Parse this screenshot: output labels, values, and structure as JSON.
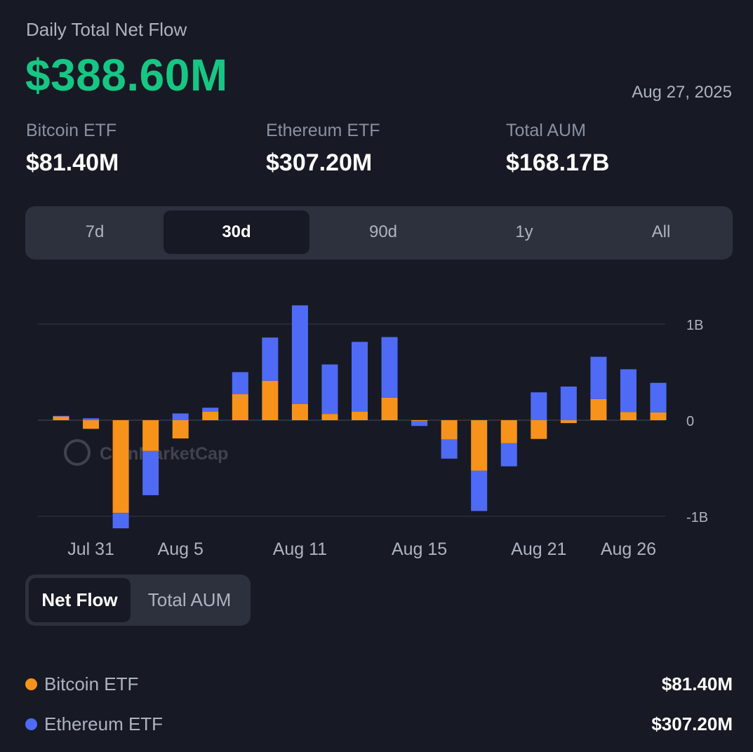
{
  "header": {
    "label": "Daily Total Net Flow",
    "value": "$388.60M",
    "date": "Aug 27, 2025"
  },
  "stats": [
    {
      "label": "Bitcoin ETF",
      "value": "$81.40M"
    },
    {
      "label": "Ethereum ETF",
      "value": "$307.20M"
    },
    {
      "label": "Total AUM",
      "value": "$168.17B"
    }
  ],
  "range_tabs": [
    "7d",
    "30d",
    "90d",
    "1y",
    "All"
  ],
  "range_active": "30d",
  "watermark": "CoinMarketCap",
  "chart_data": {
    "type": "bar",
    "stacked": true,
    "x": [
      "Jul 30",
      "Jul 31",
      "Aug 1",
      "Aug 4",
      "Aug 5",
      "Aug 6",
      "Aug 7",
      "Aug 8",
      "Aug 11",
      "Aug 12",
      "Aug 13",
      "Aug 14",
      "Aug 15",
      "Aug 18",
      "Aug 19",
      "Aug 20",
      "Aug 21",
      "Aug 22",
      "Aug 25",
      "Aug 26",
      "Aug 27"
    ],
    "x_ticks": [
      "Jul 31",
      "Aug 5",
      "Aug 11",
      "Aug 15",
      "Aug 21",
      "Aug 26"
    ],
    "y_ticks": [
      {
        "value": 1000,
        "label": "1B"
      },
      {
        "value": 0,
        "label": "0"
      },
      {
        "value": -1000,
        "label": "-1B"
      }
    ],
    "ylim": [
      -1000,
      1190
    ],
    "units": "M",
    "colors": {
      "bitcoin": "#f7931a",
      "ethereum": "#4f6bf5"
    },
    "series": [
      {
        "name": "Bitcoin ETF",
        "key": "bitcoin",
        "values": [
          40,
          -90,
          -965,
          -320,
          -190,
          90,
          270,
          410,
          170,
          65,
          90,
          235,
          -10,
          -200,
          -525,
          -240,
          -195,
          -30,
          220,
          85,
          81.4
        ]
      },
      {
        "name": "Ethereum ETF",
        "key": "ethereum",
        "values": [
          5,
          20,
          -160,
          -460,
          70,
          40,
          230,
          450,
          1025,
          515,
          725,
          630,
          -50,
          -200,
          -420,
          -240,
          290,
          350,
          440,
          445,
          307.2
        ]
      }
    ]
  },
  "mode_tabs": [
    "Net Flow",
    "Total AUM"
  ],
  "mode_active": "Net Flow",
  "legend": [
    {
      "name": "Bitcoin ETF",
      "value": "$81.40M",
      "color": "#f7931a"
    },
    {
      "name": "Ethereum ETF",
      "value": "$307.20M",
      "color": "#4f6bf5"
    }
  ]
}
